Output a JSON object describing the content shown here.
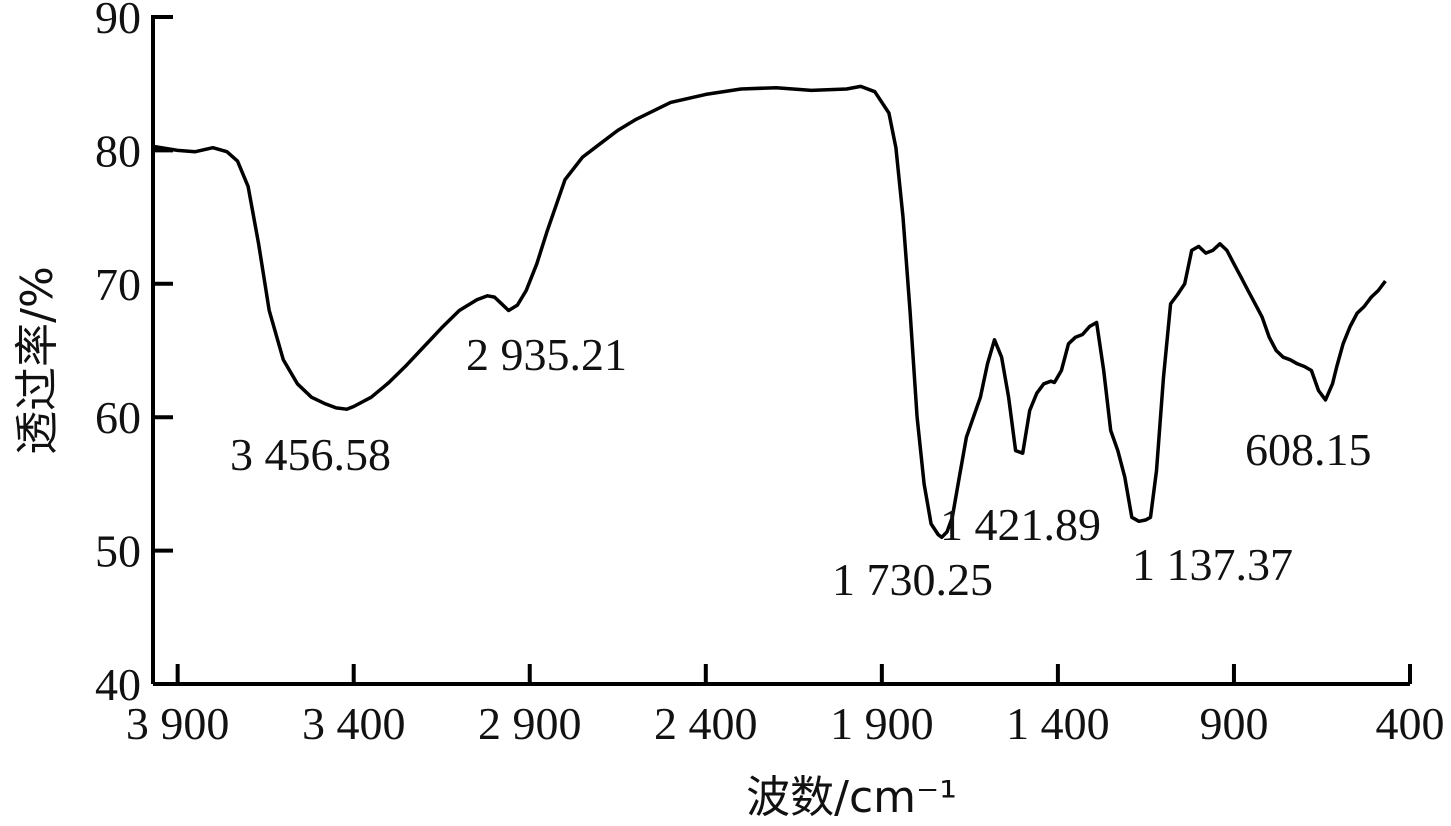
{
  "chart_data": {
    "type": "line",
    "xlabel": "波数/cm⁻¹",
    "ylabel": "透过率/%",
    "xlim": [
      3970,
      400
    ],
    "ylim": [
      40,
      90
    ],
    "x_reversed": true,
    "xticks": [
      3900,
      3400,
      2900,
      2400,
      1900,
      1400,
      900,
      400
    ],
    "xtick_labels": [
      "3 900",
      "3 400",
      "2 900",
      "2 400",
      "1 900",
      "1 400",
      "900",
      "400"
    ],
    "yticks": [
      40,
      50,
      60,
      70,
      80,
      90
    ],
    "ytick_labels": [
      "40",
      "50",
      "60",
      "70",
      "80",
      "90"
    ],
    "grid": false,
    "series": [
      {
        "color": "#000000",
        "x": [
          3970,
          3900,
          3850,
          3800,
          3760,
          3730,
          3700,
          3670,
          3640,
          3600,
          3560,
          3520,
          3480,
          3450,
          3420,
          3400,
          3350,
          3300,
          3250,
          3200,
          3150,
          3100,
          3050,
          3020,
          3000,
          2980,
          2960,
          2935,
          2910,
          2880,
          2850,
          2800,
          2750,
          2700,
          2650,
          2600,
          2500,
          2400,
          2300,
          2200,
          2100,
          2000,
          1960,
          1920,
          1880,
          1860,
          1840,
          1820,
          1800,
          1780,
          1760,
          1740,
          1730,
          1715,
          1700,
          1680,
          1660,
          1640,
          1620,
          1600,
          1580,
          1560,
          1540,
          1520,
          1500,
          1480,
          1460,
          1440,
          1420,
          1410,
          1390,
          1370,
          1350,
          1330,
          1310,
          1290,
          1270,
          1250,
          1230,
          1210,
          1190,
          1170,
          1150,
          1137,
          1120,
          1100,
          1080,
          1060,
          1040,
          1020,
          1000,
          980,
          960,
          940,
          920,
          900,
          880,
          860,
          840,
          820,
          800,
          780,
          760,
          740,
          720,
          700,
          680,
          660,
          640,
          620,
          608,
          590,
          570,
          550,
          530,
          510,
          490,
          470
        ],
        "y": [
          80.3,
          80.0,
          79.9,
          80.2,
          79.9,
          79.2,
          77.3,
          73.0,
          68.0,
          64.3,
          62.5,
          61.5,
          61.0,
          60.7,
          60.6,
          60.8,
          61.5,
          62.6,
          63.9,
          65.3,
          66.7,
          68.0,
          68.8,
          69.1,
          69.0,
          68.5,
          68.0,
          68.4,
          69.5,
          71.5,
          74.0,
          77.8,
          79.5,
          80.5,
          81.5,
          82.3,
          83.6,
          84.2,
          84.6,
          84.7,
          84.5,
          84.6,
          84.8,
          84.4,
          82.8,
          80.2,
          75.0,
          68.0,
          60.0,
          55.0,
          52.0,
          51.2,
          51.0,
          51.4,
          52.5,
          55.5,
          58.5,
          60.0,
          61.5,
          64.0,
          65.8,
          64.5,
          61.5,
          57.5,
          57.3,
          60.5,
          61.8,
          62.5,
          62.7,
          62.6,
          63.5,
          65.5,
          66.0,
          66.2,
          66.8,
          67.1,
          63.5,
          59.0,
          57.5,
          55.5,
          52.5,
          52.2,
          52.3,
          52.5,
          56.0,
          63.0,
          68.5,
          69.2,
          70.0,
          72.5,
          72.8,
          72.3,
          72.5,
          73.0,
          72.5,
          71.5,
          70.5,
          69.5,
          68.5,
          67.5,
          66.0,
          65.0,
          64.5,
          64.3,
          64.0,
          63.8,
          63.5,
          62.0,
          61.3,
          62.5,
          63.8,
          65.5,
          66.8,
          67.8,
          68.3,
          69.0,
          69.5,
          70.2
        ]
      }
    ],
    "annotations": [
      {
        "text": "3 456.58",
        "x": 3456.58
      },
      {
        "text": "2 935.21",
        "x": 2935.21
      },
      {
        "text": "1 730.25",
        "x": 1730.25
      },
      {
        "text": "1 421.89",
        "x": 1421.89
      },
      {
        "text": "1 137.37",
        "x": 1137.37
      },
      {
        "text": "608.15",
        "x": 608.15
      }
    ]
  }
}
